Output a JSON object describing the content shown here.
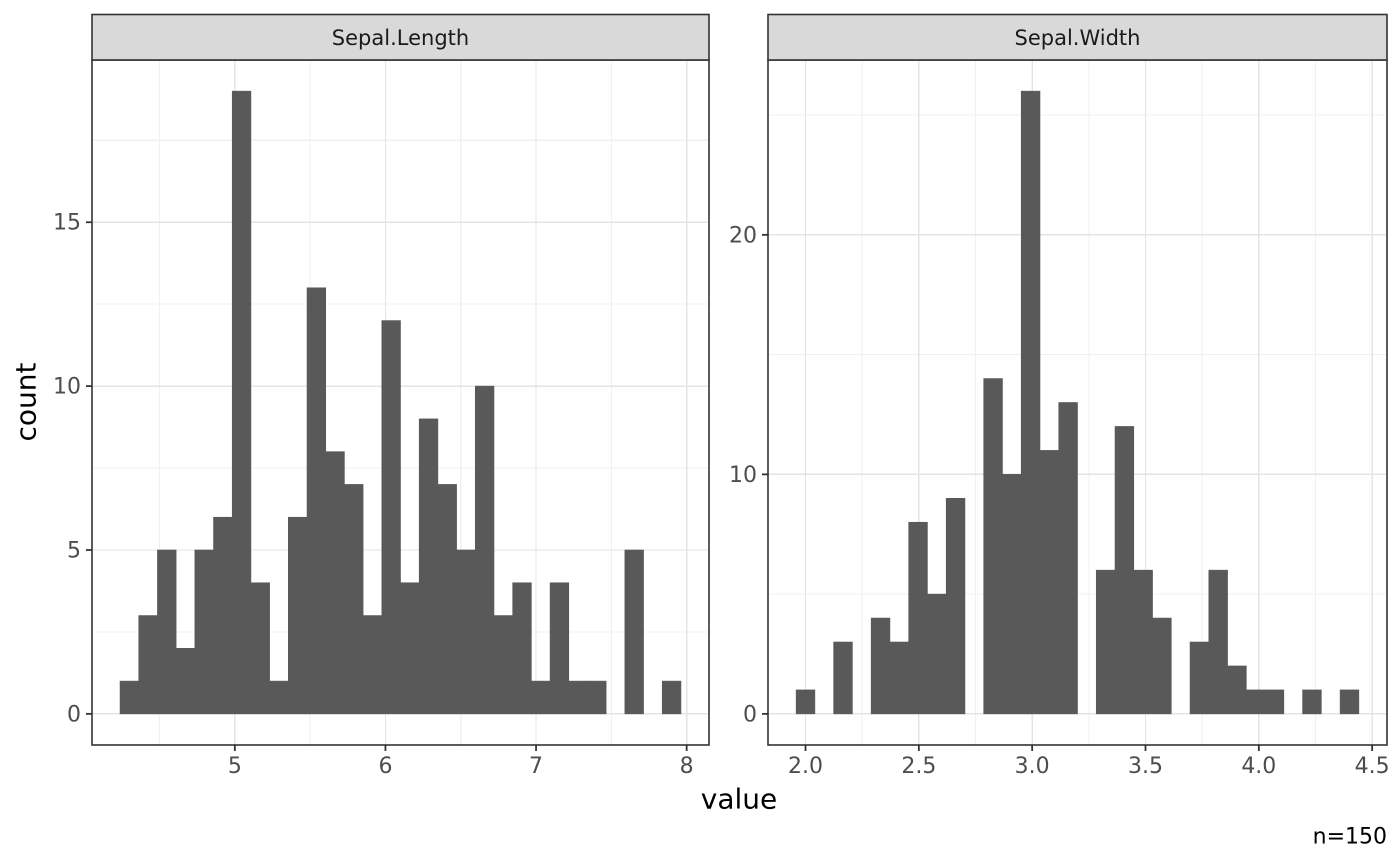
{
  "chart_data": {
    "type": "bar",
    "subtype": "faceted-histogram",
    "title": "",
    "xlabel": "value",
    "ylabel": "count",
    "annotation": "n=150",
    "sample_size": 150,
    "legend": "none",
    "grid": "on",
    "colors": {
      "bar_fill": "#595959",
      "strip_fill": "#D9D9D9",
      "panel_background": "#FFFFFF",
      "panel_border": "#333333",
      "grid_major": "#E4E4E4",
      "grid_minor": "#F0F0F0",
      "tick_mark": "#333333",
      "tick_label": "#4D4D4D",
      "axis_title": "#000000",
      "strip_text": "#1A1A1A"
    },
    "facets": [
      {
        "label": "Sepal.Length",
        "bin_center_start": 4.3,
        "binwidth": 0.1241379,
        "counts": [
          1,
          3,
          5,
          2,
          5,
          6,
          19,
          4,
          1,
          6,
          13,
          8,
          7,
          3,
          12,
          4,
          9,
          7,
          5,
          10,
          3,
          4,
          1,
          4,
          1,
          1,
          0,
          5,
          0,
          1
        ],
        "xlim": [
          4.0517,
          8.1483
        ],
        "ylim": [
          -0.95,
          19.95
        ],
        "x_major_ticks": [
          5,
          6,
          7,
          8
        ],
        "x_tick_labels": [
          "5",
          "6",
          "7",
          "8"
        ],
        "x_minor_ticks": [
          4.5,
          5.5,
          6.5,
          7.5
        ],
        "y_major_ticks": [
          0,
          5,
          10,
          15
        ],
        "y_tick_labels": [
          "0",
          "5",
          "10",
          "15"
        ],
        "y_minor_ticks": [
          2.5,
          7.5,
          12.5,
          17.5
        ]
      },
      {
        "label": "Sepal.Width",
        "bin_center_start": 2.0,
        "binwidth": 0.0827586,
        "counts": [
          1,
          0,
          3,
          0,
          4,
          3,
          8,
          5,
          9,
          0,
          14,
          10,
          26,
          11,
          13,
          0,
          6,
          12,
          6,
          4,
          0,
          3,
          6,
          2,
          1,
          1,
          0,
          1,
          0,
          1
        ],
        "xlim": [
          1.8345,
          4.5655
        ],
        "ylim": [
          -1.3,
          27.3
        ],
        "x_major_ticks": [
          2.0,
          2.5,
          3.0,
          3.5,
          4.0,
          4.5
        ],
        "x_tick_labels": [
          "2.0",
          "2.5",
          "3.0",
          "3.5",
          "4.0",
          "4.5"
        ],
        "x_minor_ticks": [
          2.25,
          2.75,
          3.25,
          3.75,
          4.25
        ],
        "y_major_ticks": [
          0,
          10,
          20
        ],
        "y_tick_labels": [
          "0",
          "10",
          "20"
        ],
        "y_minor_ticks": [
          5,
          15,
          25
        ]
      }
    ]
  }
}
